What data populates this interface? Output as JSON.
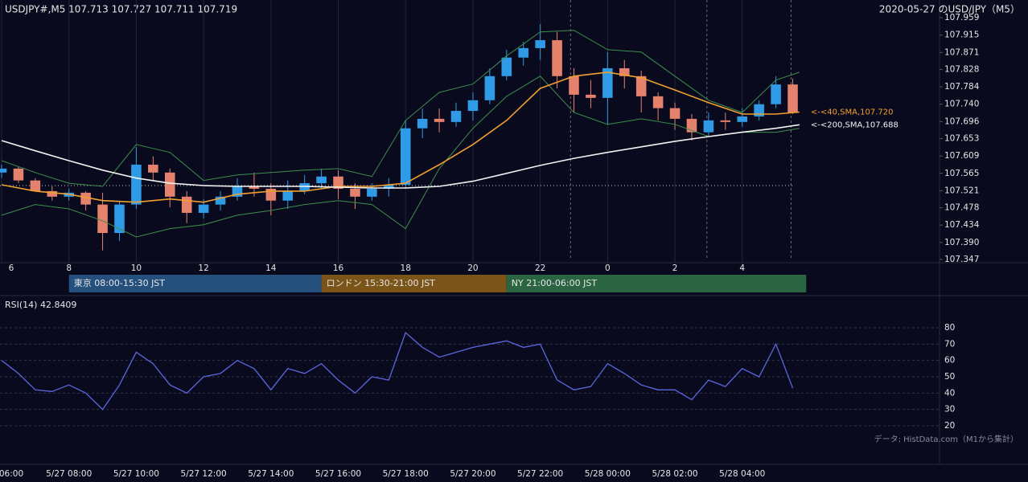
{
  "chart_data": [
    {
      "type": "candlestick",
      "title": "USDJPY#,M5 107.713 107.727 107.711 107.719",
      "subtitle": "2020-05-27 のUSD/JPY（M5）",
      "up_color": "#2f9be6",
      "down_color": "#e5826e",
      "x": [
        6,
        6.5,
        7,
        7.5,
        8,
        8.5,
        9,
        9.5,
        10,
        10.5,
        11,
        11.5,
        12,
        12.5,
        13,
        13.5,
        14,
        14.5,
        15,
        15.5,
        16,
        16.5,
        17,
        17.5,
        18,
        18.5,
        19,
        19.5,
        20,
        20.5,
        21,
        21.5,
        22,
        22.5,
        23,
        23.5,
        24,
        24.5,
        25,
        25.5,
        26,
        26.5,
        27,
        27.5,
        28,
        28.5,
        29,
        29.5
      ],
      "open": [
        107.567,
        107.577,
        107.547,
        107.52,
        107.506,
        107.516,
        107.486,
        107.414,
        107.486,
        107.587,
        107.567,
        107.506,
        107.465,
        107.486,
        107.506,
        107.532,
        107.526,
        107.496,
        107.52,
        107.54,
        107.557,
        107.526,
        107.506,
        107.526,
        107.536,
        107.679,
        107.703,
        107.695,
        107.723,
        107.75,
        107.811,
        107.858,
        107.882,
        107.902,
        107.811,
        107.764,
        107.756,
        107.831,
        107.811,
        107.76,
        107.73,
        107.703,
        107.669,
        107.699,
        107.695,
        107.709,
        107.74,
        107.79
      ],
      "high": [
        107.587,
        107.581,
        107.553,
        107.532,
        107.526,
        107.52,
        107.516,
        107.496,
        107.632,
        107.608,
        107.577,
        107.52,
        107.5,
        107.52,
        107.553,
        107.567,
        107.54,
        107.547,
        107.561,
        107.577,
        107.573,
        107.54,
        107.54,
        107.553,
        107.699,
        107.729,
        107.729,
        107.744,
        107.77,
        107.831,
        107.878,
        107.898,
        107.943,
        107.923,
        107.831,
        107.801,
        107.872,
        107.852,
        107.825,
        107.77,
        107.744,
        107.715,
        107.719,
        107.719,
        107.73,
        107.75,
        107.811,
        107.805
      ],
      "low": [
        107.553,
        107.54,
        107.52,
        107.496,
        107.496,
        107.471,
        107.37,
        107.394,
        107.475,
        107.547,
        107.479,
        107.439,
        107.451,
        107.471,
        107.496,
        107.506,
        107.459,
        107.475,
        107.512,
        107.526,
        107.5,
        107.475,
        107.496,
        107.506,
        107.526,
        107.654,
        107.669,
        107.683,
        107.699,
        107.74,
        107.801,
        107.837,
        107.852,
        107.78,
        107.719,
        107.73,
        107.689,
        107.78,
        107.719,
        107.699,
        107.675,
        107.648,
        107.658,
        107.675,
        107.683,
        107.699,
        107.73,
        107.715
      ],
      "close": [
        107.577,
        107.547,
        107.52,
        107.506,
        107.516,
        107.486,
        107.414,
        107.486,
        107.587,
        107.567,
        107.506,
        107.465,
        107.486,
        107.506,
        107.532,
        107.526,
        107.496,
        107.52,
        107.54,
        107.557,
        107.526,
        107.506,
        107.526,
        107.536,
        107.679,
        107.703,
        107.695,
        107.723,
        107.75,
        107.811,
        107.858,
        107.882,
        107.902,
        107.811,
        107.764,
        107.756,
        107.831,
        107.811,
        107.76,
        107.73,
        107.703,
        107.669,
        107.699,
        107.695,
        107.709,
        107.74,
        107.79,
        107.719
      ],
      "overlays": [
        {
          "color": "#3c8f4c",
          "x": [
            6,
            7,
            8,
            9,
            10,
            11,
            12,
            13,
            14,
            15,
            16,
            17,
            18,
            19,
            20,
            21,
            22,
            23,
            24,
            25,
            26,
            27,
            28,
            29,
            29.7
          ],
          "values": [
            107.597,
            107.567,
            107.54,
            107.532,
            107.638,
            107.618,
            107.547,
            107.561,
            107.567,
            107.573,
            107.577,
            107.557,
            107.699,
            107.77,
            107.791,
            107.862,
            107.923,
            107.927,
            107.878,
            107.872,
            107.811,
            107.75,
            107.719,
            107.801,
            107.821
          ]
        },
        {
          "color": "#3c8f4c",
          "x": [
            6,
            7,
            8,
            9,
            10,
            11,
            12,
            13,
            14,
            15,
            16,
            17,
            18,
            19,
            20,
            21,
            22,
            23,
            24,
            25,
            26,
            27,
            28,
            29,
            29.7
          ],
          "values": [
            107.459,
            107.486,
            107.475,
            107.445,
            107.404,
            107.425,
            107.435,
            107.459,
            107.471,
            107.486,
            107.496,
            107.486,
            107.425,
            107.577,
            107.679,
            107.76,
            107.811,
            107.719,
            107.689,
            107.703,
            107.689,
            107.658,
            107.669,
            107.669,
            107.679
          ]
        },
        {
          "name": "<-<40,SMA,107.720",
          "color": "#f0a030",
          "x": [
            6,
            7,
            8,
            9,
            10,
            11,
            12,
            13,
            14,
            15,
            16,
            17,
            18,
            19,
            20,
            21,
            22,
            23,
            24,
            25,
            26,
            27,
            28,
            29,
            29.7
          ],
          "values": [
            107.536,
            107.52,
            107.512,
            107.496,
            107.492,
            107.5,
            107.492,
            107.512,
            107.52,
            107.52,
            107.532,
            107.532,
            107.54,
            107.587,
            107.638,
            107.699,
            107.78,
            107.811,
            107.821,
            107.807,
            107.776,
            107.744,
            107.715,
            107.715,
            107.72
          ]
        },
        {
          "name": "<-<200,SMA,107.688",
          "color": "#f2f2f2",
          "x": [
            6,
            7,
            8,
            9,
            10,
            11,
            12,
            13,
            14,
            15,
            16,
            17,
            18,
            19,
            20,
            21,
            22,
            23,
            24,
            25,
            26,
            27,
            28,
            29,
            29.7
          ],
          "values": [
            107.648,
            107.622,
            107.597,
            107.573,
            107.553,
            107.54,
            107.534,
            107.532,
            107.532,
            107.532,
            107.53,
            107.528,
            107.528,
            107.532,
            107.545,
            107.565,
            107.585,
            107.603,
            107.618,
            107.632,
            107.646,
            107.658,
            107.669,
            107.679,
            107.688
          ]
        }
      ],
      "ylim": [
        107.347,
        107.959
      ],
      "yticks": [
        107.959,
        107.915,
        107.871,
        107.828,
        107.784,
        {
          "value": 107.74,
          "label": "107.740"
        },
        107.696,
        107.653,
        107.609,
        107.565,
        107.521,
        107.478,
        107.434,
        {
          "value": 107.39,
          "label": "107.390"
        },
        107.347
      ],
      "xlim": [
        5.952,
        33.86
      ],
      "xticks": [
        6,
        8,
        10,
        12,
        14,
        16,
        18,
        20,
        22,
        {
          "value": 24,
          "label": "0"
        },
        {
          "value": 26,
          "label": "2"
        },
        {
          "value": 28,
          "label": "4"
        }
      ],
      "grid": true,
      "reference_price": 107.534,
      "dashed_lines": [
        22.9,
        26.95,
        29.45
      ],
      "sessions": [
        {
          "label": "東京 08:00-15:30 JST",
          "start": 8,
          "end": 15.5,
          "color": "#254f7c"
        },
        {
          "label": "ロンドン 15:30-21:00 JST",
          "start": 15.5,
          "end": 21,
          "color": "#7a5418"
        },
        {
          "label": "NY 21:00-06:00 JST",
          "start": 21,
          "end": 29.9,
          "color": "#2a6440"
        }
      ]
    },
    {
      "type": "line",
      "title": "RSI(14) 42.8409",
      "source": "データ: HistData.com（M1から集計）",
      "x": [
        6,
        6.5,
        7,
        7.5,
        8,
        8.5,
        9,
        9.5,
        10,
        10.5,
        11,
        11.5,
        12,
        12.5,
        13,
        13.5,
        14,
        14.5,
        15,
        15.5,
        16,
        16.5,
        17,
        17.5,
        18,
        18.5,
        19,
        19.5,
        20,
        20.5,
        21,
        21.5,
        22,
        22.5,
        23,
        23.5,
        24,
        24.5,
        25,
        25.5,
        26,
        26.5,
        27,
        27.5,
        28,
        28.5,
        29,
        29.5
      ],
      "series": [
        {
          "color": "#5a68e0",
          "values": [
            60,
            52,
            42,
            41,
            45,
            40,
            30,
            45,
            65,
            58,
            45,
            40,
            50,
            52,
            60,
            55,
            42,
            55,
            52,
            58,
            48,
            40,
            50,
            48,
            77,
            68,
            62,
            65,
            68,
            70,
            72,
            68,
            70,
            48,
            42,
            44,
            58,
            52,
            45,
            42,
            42,
            36,
            48,
            44,
            55,
            50,
            70,
            43
          ]
        }
      ],
      "ylim": [
        20,
        80
      ],
      "yticks": [
        20,
        30,
        40,
        50,
        60,
        70,
        80
      ],
      "xlim": [
        5.952,
        33.86
      ],
      "xticks": [
        {
          "value": 6,
          "label": "06:00"
        },
        {
          "value": 8,
          "label": "5/27 08:00"
        },
        {
          "value": 10,
          "label": "5/27 10:00"
        },
        {
          "value": 12,
          "label": "5/27 12:00"
        },
        {
          "value": 14,
          "label": "5/27 14:00"
        },
        {
          "value": 16,
          "label": "5/27 16:00"
        },
        {
          "value": 18,
          "label": "5/27 18:00"
        },
        {
          "value": 20,
          "label": "5/27 20:00"
        },
        {
          "value": 22,
          "label": "5/27 22:00"
        },
        {
          "value": 24,
          "label": "5/28 00:00"
        },
        {
          "value": 26,
          "label": "5/28 02:00"
        },
        {
          "value": 28,
          "label": "5/28 04:00"
        }
      ]
    }
  ]
}
